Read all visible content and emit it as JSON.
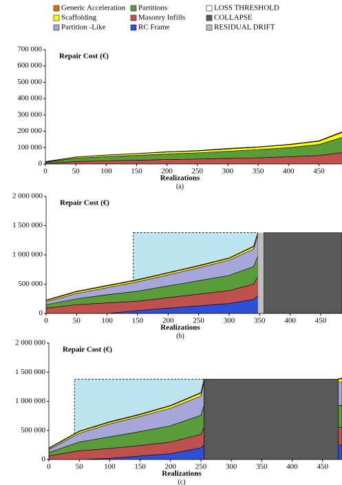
{
  "legend": [
    {
      "name": "Generic Acceleration",
      "color": "#e46c0a"
    },
    {
      "name": "Partitions",
      "color": "#5a9b3a"
    },
    {
      "name": "LOSS THRESHOLD",
      "color": "#ffffff"
    },
    {
      "name": "Scaffolding",
      "color": "#ffff00"
    },
    {
      "name": "Masonry Infills",
      "color": "#c0504d"
    },
    {
      "name": "COLLAPSE",
      "color": "#595959"
    },
    {
      "name": "Partition -Like",
      "color": "#a6a6d8"
    },
    {
      "name": "RC Frame",
      "color": "#2e4fd8"
    },
    {
      "name": "RESIDUAL DRIFT",
      "color": "#bfbfbf"
    }
  ],
  "chart_data": [
    {
      "type": "stacked_area",
      "title": "Repair Cost (€)",
      "x_label": "Realizations",
      "caption": "(a)",
      "x": [
        0,
        50,
        100,
        150,
        200,
        250,
        300,
        350,
        400,
        450,
        490
      ],
      "xlim": [
        0,
        488
      ],
      "xticks": [
        0,
        50,
        100,
        150,
        200,
        250,
        300,
        350,
        400,
        450
      ],
      "ylim": [
        0,
        700000
      ],
      "yticks": [
        0,
        {
          "value": 100000,
          "label": "100 000"
        },
        {
          "value": 200000,
          "label": "200 000"
        },
        {
          "value": 300000,
          "label": "300 000"
        },
        {
          "value": 400000,
          "label": "400 000"
        },
        {
          "value": 500000,
          "label": "500 000"
        },
        {
          "value": 600000,
          "label": "600 000"
        },
        {
          "value": 700000,
          "label": "700 000"
        }
      ],
      "series": [
        {
          "color": "#2e4fd8",
          "values": [
            0,
            0,
            0,
            0,
            0,
            0,
            0,
            0,
            0,
            0,
            0
          ]
        },
        {
          "color": "#c0504d",
          "values": [
            5000,
            15000,
            20000,
            23000,
            27000,
            30000,
            34000,
            38000,
            44000,
            52000,
            70000
          ]
        },
        {
          "color": "#5a9b3a",
          "values": [
            7000,
            20000,
            25000,
            30000,
            34000,
            38000,
            44000,
            50000,
            56000,
            67000,
            95000
          ]
        },
        {
          "color": "#a6a6d8",
          "values": [
            0,
            0,
            0,
            0,
            0,
            0,
            0,
            0,
            0,
            0,
            0
          ]
        },
        {
          "color": "#ffff00",
          "values": [
            2000,
            7000,
            9000,
            10000,
            12000,
            12000,
            14000,
            15000,
            17000,
            20000,
            30000
          ]
        },
        {
          "color": "#e46c0a",
          "values": [
            1000,
            1000,
            1000,
            1000,
            2000,
            2000,
            3000,
            2000,
            3000,
            3000,
            5000
          ]
        }
      ]
    },
    {
      "type": "stacked_area",
      "title": "Repair Cost (€)",
      "x_label": "Realizations",
      "caption": "(b)",
      "x": [
        0,
        50,
        100,
        150,
        200,
        250,
        300,
        340,
        347
      ],
      "xlim": [
        0,
        485
      ],
      "xticks": [
        0,
        50,
        100,
        150,
        200,
        250,
        300,
        350,
        400,
        450
      ],
      "ylim": [
        0,
        2000000
      ],
      "yticks": [
        0,
        {
          "value": 500000,
          "label": "500 000"
        },
        {
          "value": 1000000,
          "label": "1 000 000"
        },
        {
          "value": 1500000,
          "label": "1 500 000"
        },
        {
          "value": 2000000,
          "label": "2 000 000"
        }
      ],
      "loss_threshold": {
        "x": [
          143,
          347
        ],
        "top": 1380000
      },
      "residual_drift": {
        "x": [
          347,
          357
        ],
        "top": 1380000
      },
      "collapse": {
        "x": [
          357,
          485
        ],
        "top": 1380000
      },
      "series": [
        {
          "color": "#2e4fd8",
          "values": [
            0,
            0,
            0,
            50000,
            90000,
            130000,
            170000,
            240000,
            300000
          ]
        },
        {
          "color": "#c0504d",
          "values": [
            90000,
            150000,
            180000,
            160000,
            180000,
            200000,
            220000,
            260000,
            330000
          ]
        },
        {
          "color": "#5a9b3a",
          "values": [
            60000,
            100000,
            140000,
            170000,
            200000,
            230000,
            260000,
            300000,
            350000
          ]
        },
        {
          "color": "#a6a6d8",
          "values": [
            50000,
            90000,
            120000,
            160000,
            190000,
            220000,
            260000,
            300000,
            350000
          ]
        },
        {
          "color": "#ffff00",
          "values": [
            20000,
            30000,
            30000,
            30000,
            30000,
            30000,
            30000,
            40000,
            40000
          ]
        },
        {
          "color": "#e46c0a",
          "values": [
            10000,
            10000,
            10000,
            10000,
            10000,
            10000,
            10000,
            10000,
            10000
          ]
        }
      ]
    },
    {
      "type": "stacked_area",
      "title": "Repair Cost (€)",
      "x_label": "Realizations",
      "caption": "(c)",
      "x": [
        0,
        50,
        100,
        150,
        200,
        250,
        255,
        300,
        476,
        482
      ],
      "xlim": [
        0,
        482
      ],
      "xticks": [
        0,
        50,
        100,
        150,
        200,
        250,
        300,
        350,
        400,
        450
      ],
      "ylim": [
        0,
        2000000
      ],
      "yticks": [
        0,
        {
          "value": 500000,
          "label": "500 000"
        },
        {
          "value": 1000000,
          "label": "1 000 000"
        },
        {
          "value": 1500000,
          "label": "1 500 000"
        },
        {
          "value": 2000000,
          "label": "2 000 000"
        }
      ],
      "loss_threshold": {
        "x": [
          42,
          255
        ],
        "top": 1380000
      },
      "collapse": {
        "x": [
          255,
          476
        ],
        "top": 1380000
      },
      "series": [
        {
          "color": "#2e4fd8",
          "values": [
            0,
            0,
            20000,
            60000,
            100000,
            200000,
            250000,
            null,
            250000,
            250000
          ]
        },
        {
          "color": "#c0504d",
          "values": [
            60000,
            150000,
            170000,
            180000,
            200000,
            230000,
            300000,
            null,
            300000,
            300000
          ]
        },
        {
          "color": "#5a9b3a",
          "values": [
            60000,
            150000,
            200000,
            240000,
            280000,
            330000,
            380000,
            null,
            380000,
            380000
          ]
        },
        {
          "color": "#a6a6d8",
          "values": [
            50000,
            150000,
            220000,
            260000,
            300000,
            330000,
            390000,
            null,
            400000,
            400000
          ]
        },
        {
          "color": "#ffff00",
          "values": [
            20000,
            30000,
            30000,
            30000,
            40000,
            50000,
            50000,
            null,
            50000,
            60000
          ]
        },
        {
          "color": "#e46c0a",
          "values": [
            10000,
            10000,
            10000,
            10000,
            10000,
            10000,
            10000,
            null,
            10000,
            10000
          ]
        }
      ]
    }
  ]
}
